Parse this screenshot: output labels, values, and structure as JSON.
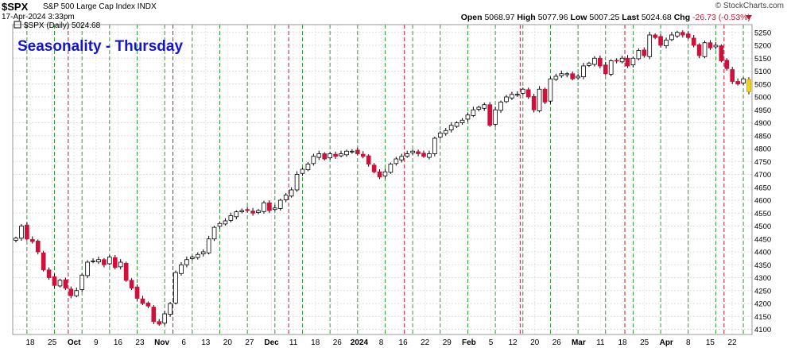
{
  "header": {
    "symbol": "$SPX",
    "description": "S&P 500 Large Cap Index INDX",
    "date": "17-Apr-2024 3:33pm",
    "brand": "© StockCharts.com",
    "open_label": "Open",
    "open": "5068.97",
    "high_label": "High",
    "high": "5077.96",
    "low_label": "Low",
    "low": "5007.25",
    "last_label": "Last",
    "last": "5024.68",
    "chg_label": "Chg",
    "chg": "-26.73 (-0.53%)"
  },
  "colors": {
    "up": "#ffffff",
    "down": "#d0103a",
    "today": "#f2d21b",
    "thursday_green": "#2ca02c",
    "month_red": "#d0103a",
    "title": "#1515d0"
  },
  "chart_data": {
    "type": "candlestick",
    "title": "Seasonality - Thursday",
    "legend": "$SPX (Daily) 5024.68",
    "ylim": [
      4080,
      5280
    ],
    "y_ticks": [
      4100,
      4150,
      4200,
      4250,
      4300,
      4350,
      4400,
      4450,
      4500,
      4550,
      4600,
      4650,
      4700,
      4750,
      4800,
      4850,
      4900,
      4950,
      5000,
      5050,
      5100,
      5150,
      5200,
      5250
    ],
    "x_tick_labels": [
      "18",
      "25",
      "Oct",
      "9",
      "16",
      "23",
      "Nov",
      "6",
      "13",
      "20",
      "27",
      "Dec",
      "11",
      "18",
      "26",
      "2024",
      "8",
      "16",
      "22",
      "29",
      "Feb",
      "5",
      "12",
      "20",
      "26",
      "Mar",
      "11",
      "18",
      "25",
      "Apr",
      "8",
      "15",
      "22"
    ],
    "grid": true,
    "closes": [
      4453,
      4500,
      4450,
      4440,
      4400,
      4330,
      4300,
      4270,
      4290,
      4260,
      4230,
      4250,
      4310,
      4360,
      4365,
      4370,
      4350,
      4380,
      4340,
      4360,
      4290,
      4260,
      4220,
      4200,
      4190,
      4130,
      4120,
      4160,
      4200,
      4320,
      4350,
      4370,
      4380,
      4390,
      4400,
      4450,
      4495,
      4510,
      4520,
      4540,
      4555,
      4560,
      4560,
      4550,
      4560,
      4590,
      4560,
      4570,
      4600,
      4620,
      4640,
      4700,
      4720,
      4740,
      4770,
      4780,
      4760,
      4780,
      4770,
      4780,
      4790,
      4790,
      4780,
      4770,
      4740,
      4710,
      4690,
      4710,
      4740,
      4760,
      4770,
      4780,
      4790,
      4780,
      4770,
      4780,
      4840,
      4860,
      4870,
      4890,
      4900,
      4910,
      4930,
      4950,
      4960,
      4970,
      4890,
      4950,
      4980,
      5000,
      5010,
      5010,
      5030,
      5000,
      4950,
      5030,
      4980,
      5070,
      5080,
      5090,
      5090,
      5070,
      5080,
      5120,
      5130,
      5150,
      5120,
      5090,
      5140,
      5140,
      5150,
      5120,
      5150,
      5180,
      5160,
      5240,
      5230,
      5200,
      5220,
      5240,
      5250,
      5240,
      5230,
      5200,
      5160,
      5210,
      5190,
      5200,
      5140,
      5110,
      5060,
      5050,
      5070,
      5020
    ],
    "thursday_vline_indices": [
      2,
      7,
      12,
      17,
      22,
      27,
      32,
      37,
      42,
      47,
      52,
      57,
      62,
      67,
      72,
      77,
      82,
      87,
      92,
      97,
      102,
      107,
      112,
      117,
      122,
      127,
      132
    ],
    "month_vline_indices": [
      9,
      28,
      49,
      70,
      91,
      110,
      128
    ]
  }
}
